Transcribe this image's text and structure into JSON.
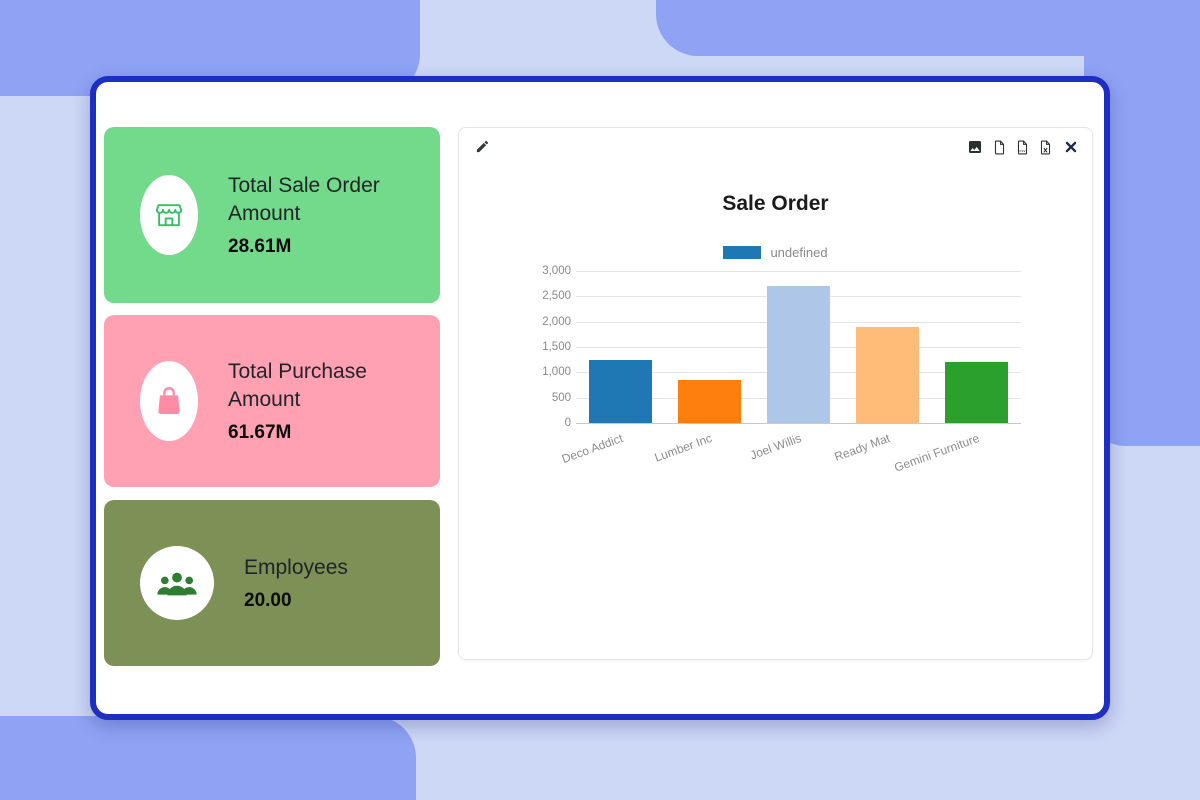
{
  "background": {
    "base_color": "#cdd7f6",
    "shape_color": "#8fa2f4"
  },
  "window": {
    "border_color": "#1e2ec2"
  },
  "cards": [
    {
      "title": "Total Sale Order Amount",
      "value": "28.61M",
      "bg_color": "#72da8a",
      "icon": "store-icon",
      "icon_color": "#2fc162"
    },
    {
      "title": "Total Purchase Amount",
      "value": "61.67M",
      "bg_color": "#ffa0b3",
      "icon": "shopping-bag-icon",
      "icon_color": "#ff8ca4"
    },
    {
      "title": "Employees",
      "value": "20.00",
      "bg_color": "#7d9156",
      "icon": "employees-group-icon",
      "icon_color": "#2e7d32"
    }
  ],
  "chart_panel": {
    "toolbar": {
      "edit_icon": "pencil-icon",
      "export_icons": [
        "export-image-icon",
        "export-pdf-icon",
        "export-csv-icon",
        "export-xlsx-icon"
      ],
      "close_icon": "close-x-icon"
    }
  },
  "chart_data": {
    "type": "bar",
    "title": "Sale Order",
    "legend": {
      "label": "undefined",
      "color": "#1f77b4",
      "position": "top"
    },
    "categories": [
      "Deco Addict",
      "Lumber Inc",
      "Joel Willis",
      "Ready Mat",
      "Gemini Furniture"
    ],
    "values": [
      1250,
      850,
      2700,
      1900,
      1200
    ],
    "bar_colors": [
      "#1f77b4",
      "#ff7f0e",
      "#aec7e8",
      "#ffbb78",
      "#2ca02c"
    ],
    "ylim": [
      0,
      3000
    ],
    "ytick_step": 500,
    "ytick_labels": [
      "3,000",
      "2,500",
      "2,000",
      "1,500",
      "1,000",
      "500",
      "0"
    ],
    "grid": true,
    "xlabel": "",
    "ylabel": ""
  }
}
